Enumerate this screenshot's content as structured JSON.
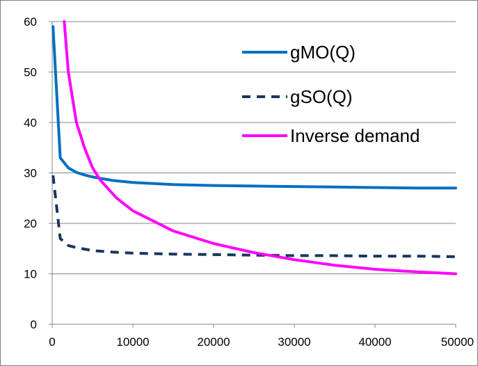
{
  "chart_data": {
    "type": "line",
    "title": "",
    "xlabel": "",
    "ylabel": "",
    "xlim": [
      0,
      50000
    ],
    "ylim": [
      0,
      60
    ],
    "x_ticks": [
      "0",
      "10000",
      "20000",
      "30000",
      "40000",
      "50000"
    ],
    "y_ticks": [
      "0",
      "10",
      "20",
      "30",
      "40",
      "50",
      "60"
    ],
    "grid": "horizontal",
    "legend_position": "top-right",
    "series": [
      {
        "name": "gMO(Q)",
        "color": "#0070c0",
        "dash": "solid",
        "x": [
          100,
          1000,
          2000,
          3000,
          4000,
          5000,
          7500,
          10000,
          15000,
          20000,
          25000,
          30000,
          35000,
          40000,
          45000,
          50000
        ],
        "y": [
          59,
          33,
          31,
          30.1,
          29.6,
          29.2,
          28.5,
          28.1,
          27.7,
          27.5,
          27.4,
          27.3,
          27.2,
          27.1,
          27.0,
          27.0
        ]
      },
      {
        "name": "gSO(Q)",
        "color": "#17375e",
        "dash": "dashed",
        "x": [
          100,
          1000,
          2000,
          3000,
          4000,
          5000,
          7500,
          10000,
          15000,
          20000,
          25000,
          30000,
          35000,
          40000,
          45000,
          50000
        ],
        "y": [
          29.5,
          17,
          15.6,
          15.2,
          14.9,
          14.6,
          14.3,
          14.1,
          13.9,
          13.8,
          13.7,
          13.6,
          13.6,
          13.5,
          13.5,
          13.4
        ]
      },
      {
        "name": "Inverse demand",
        "color": "#ff00ff",
        "dash": "solid",
        "x": [
          1500,
          2000,
          3000,
          4000,
          5000,
          6000,
          8000,
          10000,
          15000,
          20000,
          25000,
          30000,
          35000,
          40000,
          45000,
          50000
        ],
        "y": [
          60,
          50,
          40,
          35,
          31,
          28.5,
          25,
          22.5,
          18.5,
          16,
          14.2,
          12.8,
          11.7,
          10.9,
          10.4,
          10
        ]
      }
    ]
  }
}
